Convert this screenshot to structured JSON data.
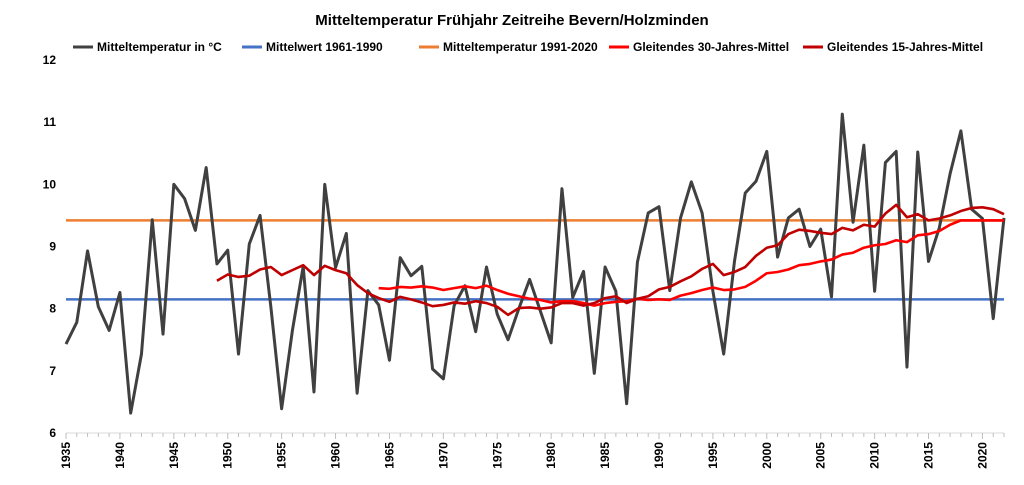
{
  "chart_data": {
    "type": "line",
    "title": "Mitteltemperatur Frühjahr Zeitreihe Bevern/Holzminden",
    "xlabel": "",
    "ylabel": "",
    "xlim": [
      1935,
      2022
    ],
    "ylim": [
      6,
      12
    ],
    "y_ticks": [
      6,
      7,
      8,
      9,
      10,
      11,
      12
    ],
    "x_ticks": [
      1935,
      1940,
      1945,
      1950,
      1955,
      1960,
      1965,
      1970,
      1975,
      1980,
      1985,
      1990,
      1995,
      2000,
      2005,
      2010,
      2015,
      2020
    ],
    "grid": false,
    "legend_position": "top",
    "series": [
      {
        "name": "Mitteltemperatur in °C",
        "color": "#404040",
        "kind": "line",
        "x": [
          1935,
          1936,
          1937,
          1938,
          1939,
          1940,
          1941,
          1942,
          1943,
          1944,
          1945,
          1946,
          1947,
          1948,
          1949,
          1950,
          1951,
          1952,
          1953,
          1954,
          1955,
          1956,
          1957,
          1958,
          1959,
          1960,
          1961,
          1962,
          1963,
          1964,
          1965,
          1966,
          1967,
          1968,
          1969,
          1970,
          1971,
          1972,
          1973,
          1974,
          1975,
          1976,
          1977,
          1978,
          1979,
          1980,
          1981,
          1982,
          1983,
          1984,
          1985,
          1986,
          1987,
          1988,
          1989,
          1990,
          1991,
          1992,
          1993,
          1994,
          1995,
          1996,
          1997,
          1998,
          1999,
          2000,
          2001,
          2002,
          2003,
          2004,
          2005,
          2006,
          2007,
          2008,
          2009,
          2010,
          2011,
          2012,
          2013,
          2014,
          2015,
          2016,
          2017,
          2018,
          2019,
          2020,
          2021,
          2022
        ],
        "values": [
          7.43,
          7.78,
          8.93,
          8.03,
          7.65,
          8.26,
          6.32,
          7.27,
          9.43,
          7.59,
          10.0,
          9.77,
          9.26,
          10.27,
          8.72,
          8.94,
          7.27,
          9.04,
          9.5,
          8.03,
          6.39,
          7.65,
          8.68,
          6.66,
          10.0,
          8.66,
          9.21,
          6.64,
          8.29,
          8.06,
          7.17,
          8.82,
          8.53,
          8.68,
          7.03,
          6.87,
          8.05,
          8.37,
          7.63,
          8.67,
          7.91,
          7.5,
          8.0,
          8.47,
          7.96,
          7.45,
          9.93,
          8.18,
          8.6,
          6.96,
          8.67,
          8.28,
          6.47,
          8.75,
          9.54,
          9.64,
          8.29,
          9.46,
          10.04,
          9.54,
          8.28,
          7.27,
          8.76,
          9.86,
          10.05,
          10.53,
          8.83,
          9.46,
          9.6,
          9.0,
          9.28,
          8.19,
          11.13,
          9.39,
          10.63,
          8.28,
          10.35,
          10.53,
          7.06,
          10.52,
          8.76,
          9.3,
          10.17,
          10.86,
          9.6,
          9.45,
          7.84,
          9.46
        ]
      },
      {
        "name": "Mittelwert 1961-1990",
        "color": "#4472c4",
        "kind": "hline",
        "value": 8.15
      },
      {
        "name": "Mitteltemperatur 1991-2020",
        "color": "#ed7d31",
        "kind": "hline",
        "value": 9.42
      },
      {
        "name": "Gleitendes 30-Jahres-Mittel",
        "color": "#ff0000",
        "kind": "line",
        "x": [
          1964,
          1965,
          1966,
          1967,
          1968,
          1969,
          1970,
          1971,
          1972,
          1973,
          1974,
          1975,
          1976,
          1977,
          1978,
          1979,
          1980,
          1981,
          1982,
          1983,
          1984,
          1985,
          1986,
          1987,
          1988,
          1989,
          1990,
          1991,
          1992,
          1993,
          1994,
          1995,
          1996,
          1997,
          1998,
          1999,
          2000,
          2001,
          2002,
          2003,
          2004,
          2005,
          2006,
          2007,
          2008,
          2009,
          2010,
          2011,
          2012,
          2013,
          2014,
          2015,
          2016,
          2017,
          2018,
          2019,
          2020,
          2021,
          2022
        ],
        "values": [
          8.33,
          8.32,
          8.35,
          8.34,
          8.36,
          8.34,
          8.3,
          8.33,
          8.36,
          8.33,
          8.37,
          8.3,
          8.24,
          8.2,
          8.16,
          8.14,
          8.1,
          8.12,
          8.12,
          8.09,
          8.05,
          8.09,
          8.11,
          8.12,
          8.16,
          8.14,
          8.15,
          8.14,
          8.21,
          8.25,
          8.3,
          8.34,
          8.3,
          8.31,
          8.35,
          8.45,
          8.57,
          8.59,
          8.63,
          8.7,
          8.72,
          8.76,
          8.79,
          8.87,
          8.9,
          8.98,
          9.02,
          9.04,
          9.1,
          9.07,
          9.18,
          9.2,
          9.25,
          9.35,
          9.42,
          9.42,
          9.42,
          9.42,
          9.42
        ]
      },
      {
        "name": "Gleitendes 15-Jahres-Mittel",
        "color": "#c00000",
        "kind": "line",
        "x": [
          1949,
          1950,
          1951,
          1952,
          1953,
          1954,
          1955,
          1956,
          1957,
          1958,
          1959,
          1960,
          1961,
          1962,
          1963,
          1964,
          1965,
          1966,
          1967,
          1968,
          1969,
          1970,
          1971,
          1972,
          1973,
          1974,
          1975,
          1976,
          1977,
          1978,
          1979,
          1980,
          1981,
          1982,
          1983,
          1984,
          1985,
          1986,
          1987,
          1988,
          1989,
          1990,
          1991,
          1992,
          1993,
          1994,
          1995,
          1996,
          1997,
          1998,
          1999,
          2000,
          2001,
          2002,
          2003,
          2004,
          2005,
          2006,
          2007,
          2008,
          2009,
          2010,
          2011,
          2012,
          2013,
          2014,
          2015,
          2016,
          2017,
          2018,
          2019,
          2020,
          2021,
          2022
        ],
        "values": [
          8.45,
          8.55,
          8.51,
          8.53,
          8.63,
          8.67,
          8.54,
          8.62,
          8.7,
          8.54,
          8.69,
          8.62,
          8.57,
          8.38,
          8.25,
          8.17,
          8.11,
          8.19,
          8.15,
          8.1,
          8.04,
          8.06,
          8.1,
          8.08,
          8.12,
          8.09,
          8.03,
          7.9,
          8.01,
          8.02,
          8.0,
          8.02,
          8.09,
          8.09,
          8.05,
          8.09,
          8.17,
          8.2,
          8.09,
          8.16,
          8.2,
          8.31,
          8.35,
          8.44,
          8.52,
          8.64,
          8.72,
          8.54,
          8.59,
          8.67,
          8.85,
          8.98,
          9.02,
          9.2,
          9.27,
          9.25,
          9.22,
          9.2,
          9.3,
          9.26,
          9.35,
          9.32,
          9.53,
          9.67,
          9.47,
          9.52,
          9.42,
          9.45,
          9.5,
          9.57,
          9.62,
          9.63,
          9.6,
          9.52
        ]
      }
    ]
  }
}
